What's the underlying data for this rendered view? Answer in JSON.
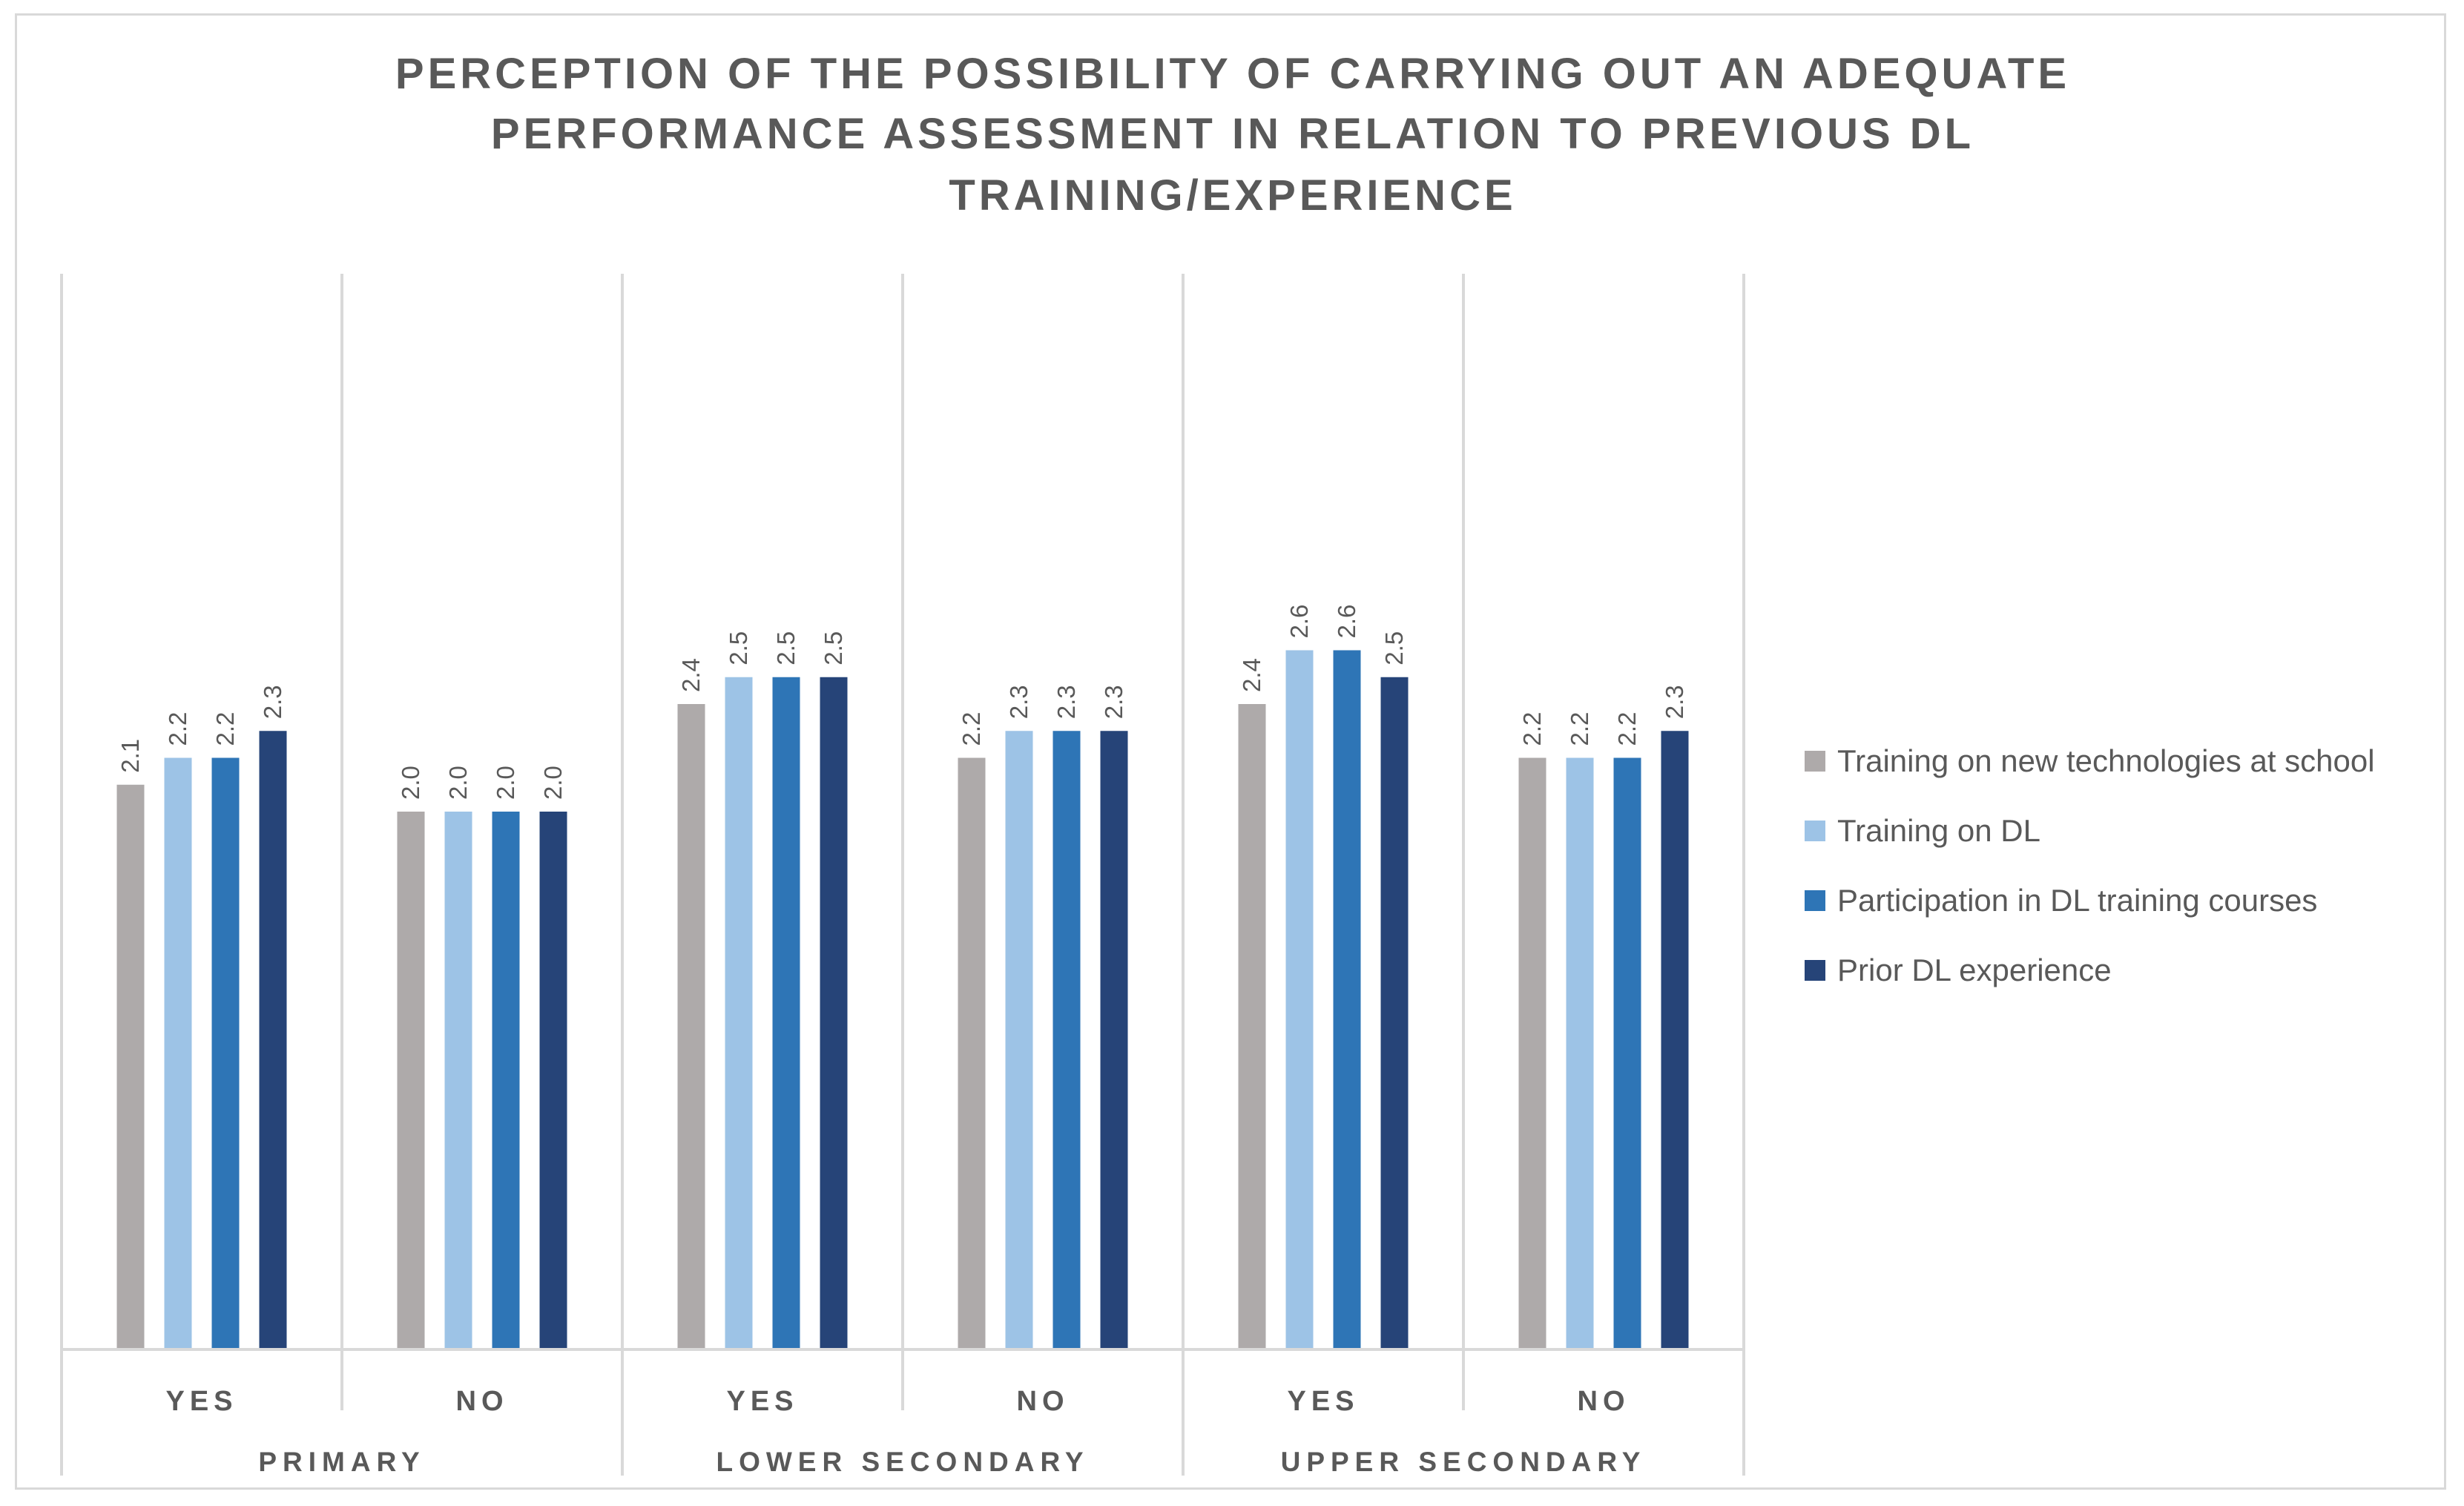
{
  "chart_data": {
    "type": "bar",
    "title_lines": [
      "PERCEPTION  OF THE POSSIBILITY  OF CARRYING  OUT  AN ADEQUATE",
      "PERFORMANCE  ASSESSMENT  IN RELATION  TO PREVIOUS  DL",
      "TRAINING/EXPERIENCE"
    ],
    "groups": [
      "PRIMARY",
      "LOWER  SECONDARY",
      "UPPER  SECONDARY"
    ],
    "categories": [
      "YES",
      "NO",
      "YES",
      "NO",
      "YES",
      "NO"
    ],
    "ylim": [
      0,
      4
    ],
    "grid": false,
    "legend_position": "right",
    "series": [
      {
        "name": "Training on new technologies at school",
        "color": "#aeaaaa",
        "values": [
          2.1,
          2.0,
          2.4,
          2.2,
          2.4,
          2.2
        ],
        "labels": [
          "2.1",
          "2.0",
          "2.4",
          "2.2",
          "2.4",
          "2.2"
        ]
      },
      {
        "name": "Training on DL",
        "color": "#9dc3e6",
        "values": [
          2.2,
          2.0,
          2.5,
          2.3,
          2.6,
          2.2
        ],
        "labels": [
          "2.2",
          "2.0",
          "2.5",
          "2.3",
          "2.6",
          "2.2"
        ]
      },
      {
        "name": "Participation in DL training courses",
        "color": "#2e75b6",
        "values": [
          2.2,
          2.0,
          2.5,
          2.3,
          2.6,
          2.2
        ],
        "labels": [
          "2.2",
          "2.0",
          "2.5",
          "2.3",
          "2.6",
          "2.2"
        ]
      },
      {
        "name": "Prior DL experience",
        "color": "#264478",
        "values": [
          2.3,
          2.0,
          2.5,
          2.3,
          2.5,
          2.3
        ],
        "labels": [
          "2.3",
          "2.0",
          "2.5",
          "2.3",
          "2.5",
          "2.3"
        ]
      }
    ]
  }
}
